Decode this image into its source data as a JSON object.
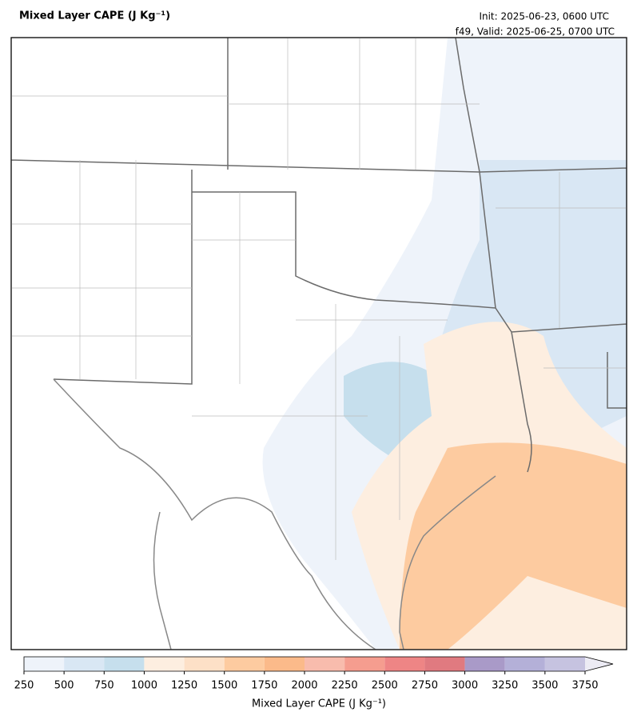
{
  "header": {
    "title": "Mixed Layer CAPE (J Kg⁻¹)",
    "init": "Init: 2025-06-23, 0600 UTC",
    "valid": "f49, Valid: 2025-06-25, 0700 UTC"
  },
  "colorbar": {
    "label": "Mixed Layer CAPE (J Kg⁻¹)",
    "ticks": [
      250,
      500,
      750,
      1000,
      1250,
      1500,
      1750,
      2000,
      2250,
      2500,
      2750,
      3000,
      3250,
      3500,
      3750
    ],
    "colors": [
      "#eef3fa",
      "#d9e7f4",
      "#c6dfed",
      "#fdeee0",
      "#fde0c7",
      "#fdcba0",
      "#fbba8a",
      "#f8bcad",
      "#f59d8f",
      "#ee8585",
      "#e07a80",
      "#a99ac8",
      "#b4b0d8",
      "#c6c3e0",
      "#ecebf4"
    ],
    "extend": "max"
  }
}
